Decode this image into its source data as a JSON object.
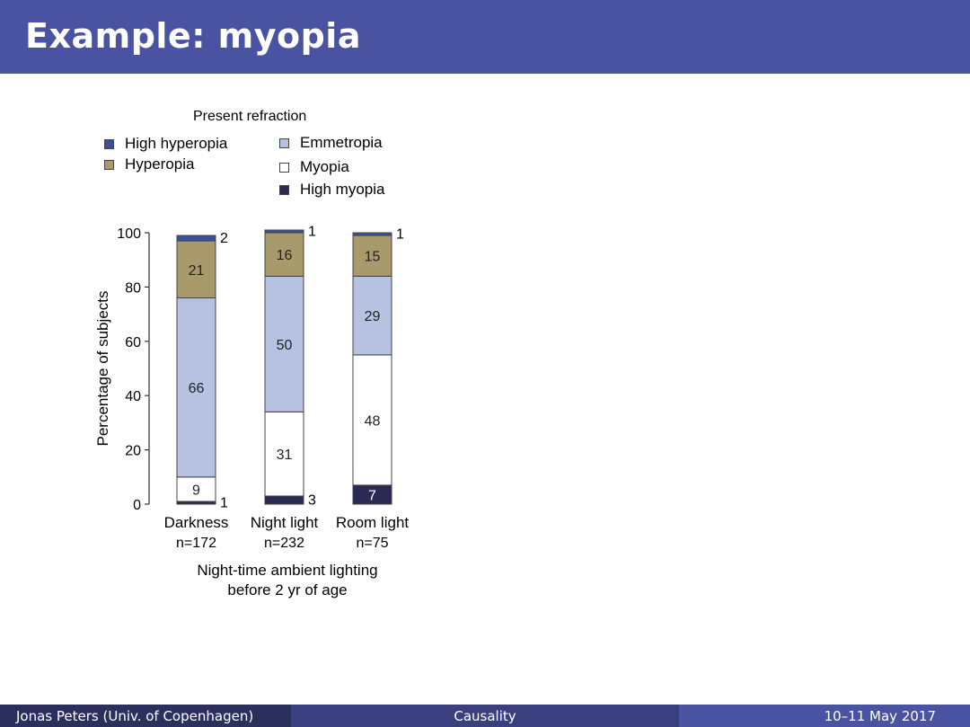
{
  "slide": {
    "title": "Example: myopia"
  },
  "footer": {
    "author": "Jonas Peters  (Univ. of Copenhagen)",
    "topic": "Causality",
    "date": "10–11 May 2017"
  },
  "colors": {
    "header_bg": "#4a53a2",
    "high_hyperopia": "#3b4f9e",
    "hyperopia": "#a89a6a",
    "emmetropia": "#b7c1e2",
    "myopia": "#ffffff",
    "high_myopia": "#2a2a55"
  },
  "chart_data": {
    "type": "bar",
    "stacked": true,
    "legend_title": "Present refraction",
    "legend": [
      {
        "name": "High hyperopia",
        "color": "#3b4f9e"
      },
      {
        "name": "Hyperopia",
        "color": "#a89a6a"
      },
      {
        "name": "Emmetropia",
        "color": "#b7c1e2"
      },
      {
        "name": "Myopia",
        "color": "#ffffff"
      },
      {
        "name": "High myopia",
        "color": "#2a2a55"
      }
    ],
    "categories": [
      "Darkness",
      "Night light",
      "Room light"
    ],
    "category_n": [
      "n=172",
      "n=232",
      "n=75"
    ],
    "series": [
      {
        "name": "High myopia",
        "values": [
          1,
          3,
          7
        ],
        "color": "#2a2a55"
      },
      {
        "name": "Myopia",
        "values": [
          9,
          31,
          48
        ],
        "color": "#ffffff"
      },
      {
        "name": "Emmetropia",
        "values": [
          66,
          50,
          29
        ],
        "color": "#b7c1e2"
      },
      {
        "name": "Hyperopia",
        "values": [
          21,
          16,
          15
        ],
        "color": "#a89a6a"
      },
      {
        "name": "High hyperopia",
        "values": [
          2,
          1,
          1
        ],
        "color": "#3b4f9e"
      }
    ],
    "ylabel": "Percentage of subjects",
    "xlabel": "Night-time ambient lighting before 2 yr of age",
    "xlabel_lines": [
      "Night-time ambient lighting",
      "before 2 yr of age"
    ],
    "ylim": [
      0,
      100
    ],
    "yticks": [
      0,
      20,
      40,
      60,
      80,
      100
    ],
    "grid": false,
    "legend_placement": "top"
  }
}
